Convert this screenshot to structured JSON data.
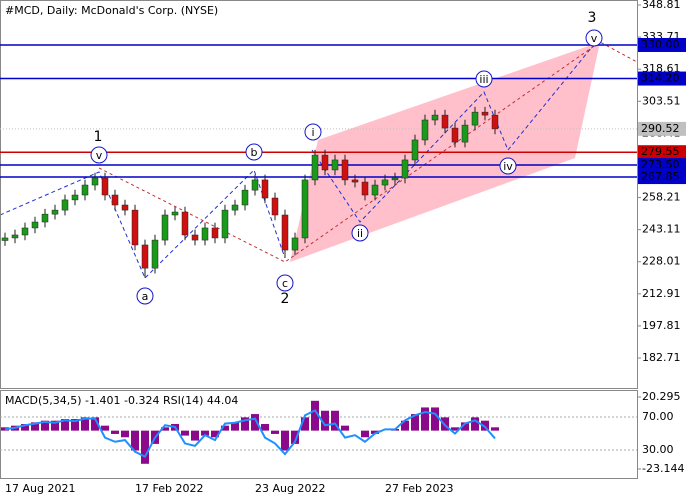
{
  "chart_data": [
    {
      "type": "candlestick",
      "title": "#MCD, Daily:  McDonald's Corp. (NYSE)",
      "categories": [
        "17 Aug 2021",
        null,
        null,
        null,
        null,
        null,
        null,
        null,
        null,
        null,
        null,
        null,
        null,
        "17 Feb 2022",
        null,
        null,
        null,
        null,
        null,
        null,
        null,
        null,
        null,
        null,
        null,
        "23 Aug 2022",
        null,
        null,
        null,
        null,
        null,
        null,
        null,
        null,
        null,
        null,
        null,
        null,
        "27 Feb 2023",
        null,
        null,
        null,
        null,
        null,
        null,
        null,
        null,
        null,
        null,
        null
      ],
      "open": [
        238.0,
        239.2,
        240.6,
        243.9,
        246.7,
        250.4,
        252.3,
        257.1,
        259.4,
        264.1,
        267.4,
        259.4,
        254.7,
        252.3,
        235.9,
        225.0,
        238.2,
        250.0,
        251.4,
        240.6,
        238.2,
        243.9,
        239.2,
        252.3,
        254.7,
        261.7,
        266.5,
        258.0,
        250.0,
        233.5,
        239.2,
        266.5,
        278.2,
        271.2,
        275.9,
        266.5,
        265.5,
        259.4,
        264.1,
        266.5,
        267.4,
        275.9,
        285.3,
        294.7,
        297.0,
        290.9,
        284.3,
        292.3,
        298.4,
        297.0
      ],
      "high": [
        241.7,
        243.1,
        246.4,
        249.2,
        252.9,
        254.8,
        259.6,
        261.9,
        266.6,
        269.9,
        269.9,
        261.9,
        257.2,
        254.8,
        238.4,
        240.7,
        252.5,
        253.9,
        253.9,
        243.1,
        246.4,
        246.4,
        254.8,
        257.2,
        264.2,
        269.0,
        269.0,
        260.5,
        252.5,
        241.7,
        269.0,
        280.7,
        280.7,
        278.4,
        278.4,
        269.0,
        268.0,
        266.6,
        269.0,
        269.9,
        278.4,
        287.8,
        297.2,
        299.5,
        299.5,
        293.4,
        294.8,
        300.9,
        300.9,
        299.5
      ],
      "low": [
        235.5,
        236.7,
        238.1,
        241.4,
        244.2,
        247.9,
        249.8,
        254.6,
        256.9,
        261.6,
        256.9,
        252.2,
        249.8,
        233.4,
        220.5,
        222.5,
        235.7,
        247.5,
        238.1,
        235.7,
        235.7,
        236.7,
        236.7,
        249.8,
        252.2,
        259.2,
        255.5,
        247.5,
        229.8,
        231.0,
        236.7,
        264.0,
        268.7,
        268.7,
        264.0,
        263.0,
        256.9,
        256.9,
        261.6,
        264.0,
        264.9,
        273.4,
        282.8,
        292.2,
        288.4,
        281.8,
        281.8,
        289.8,
        294.5,
        288.0
      ],
      "close": [
        239.2,
        240.6,
        243.9,
        246.7,
        250.4,
        252.3,
        257.1,
        259.4,
        264.1,
        267.4,
        259.4,
        254.7,
        252.3,
        235.9,
        225.0,
        238.2,
        250.0,
        251.4,
        240.6,
        238.2,
        243.9,
        239.2,
        252.3,
        254.7,
        261.7,
        266.5,
        258.0,
        250.0,
        233.5,
        239.2,
        266.5,
        278.2,
        271.2,
        275.9,
        266.5,
        265.5,
        259.4,
        264.1,
        266.5,
        267.4,
        275.9,
        285.3,
        294.7,
        297.0,
        290.9,
        284.3,
        292.3,
        298.4,
        297.0,
        290.52
      ],
      "up_color": "#1a9a1a",
      "down_color": "#d01010",
      "ylim": [
        168.6,
        351.16
      ],
      "yticks": [
        348.81,
        333.71,
        318.61,
        303.51,
        288.41,
        273.31,
        258.21,
        243.11,
        228.01,
        212.91,
        197.81,
        182.71
      ],
      "levels": [
        {
          "value": 330,
          "label": "330.00",
          "color": "#0000c8"
        },
        {
          "value": 314.2,
          "label": "314.20",
          "color": "#0000c8"
        },
        {
          "value": 279.55,
          "label": "279.55",
          "color": "#cc0000"
        },
        {
          "value": 273.5,
          "label": "273.50",
          "color": "#0000c8"
        },
        {
          "value": 267.85,
          "label": "267.85",
          "color": "#0000c8"
        }
      ],
      "last_price": {
        "value": 290.52,
        "label": "290.52",
        "color": "#c0c0c0"
      },
      "annotations": [
        {
          "text": "1",
          "color": "#b03020",
          "circled": false
        },
        {
          "text": "v",
          "color": "#1515c8",
          "circled": true
        },
        {
          "text": "a",
          "color": "#1515c8",
          "circled": true
        },
        {
          "text": "b",
          "color": "#1515c8",
          "circled": true
        },
        {
          "text": "c",
          "color": "#1515c8",
          "circled": true
        },
        {
          "text": "2",
          "color": "#b03020",
          "circled": false
        },
        {
          "text": "i",
          "color": "#1515c8",
          "circled": true
        },
        {
          "text": "ii",
          "color": "#1515c8",
          "circled": true
        },
        {
          "text": "iii",
          "color": "#1515c8",
          "circled": true
        },
        {
          "text": "iv",
          "color": "#1515c8",
          "circled": true
        },
        {
          "text": "v",
          "color": "#1515c8",
          "circled": true
        },
        {
          "text": "3",
          "color": "#b03020",
          "circled": false
        }
      ]
    },
    {
      "type": "bar",
      "title": "MACD(5,34,5) -1.401 -0.324 RSI(14) 44.04",
      "ylim": [
        -28.58,
        24.52
      ],
      "yticks": [
        20.295,
        -23.144
      ],
      "y2lim": [
        -3.9,
        102.7
      ],
      "y2ticks": [
        {
          "value": 70,
          "label": "70.00"
        },
        {
          "value": 30,
          "label": "30.00"
        }
      ],
      "series": [
        {
          "type": "bar",
          "color": "#8b0a8b",
          "values": [
            2,
            3,
            4,
            5,
            6,
            6,
            7,
            7,
            8,
            8,
            3,
            -2,
            -4,
            -12,
            -20,
            -8,
            2,
            4,
            -3,
            -6,
            -3,
            -4,
            3,
            5,
            8,
            10,
            4,
            -2,
            -12,
            -8,
            8,
            18,
            12,
            12,
            3,
            0,
            -4,
            -2,
            0,
            1,
            6,
            10,
            14,
            14,
            8,
            2,
            5,
            8,
            6,
            2
          ]
        },
        {
          "type": "line",
          "axis": "y2",
          "color": "#1e90ff",
          "values": [
            55,
            57,
            60,
            62,
            64,
            63,
            66,
            65,
            68,
            68,
            45,
            40,
            42,
            28,
            22,
            45,
            60,
            58,
            38,
            35,
            48,
            42,
            62,
            63,
            66,
            68,
            45,
            38,
            25,
            40,
            72,
            78,
            60,
            62,
            45,
            48,
            40,
            50,
            55,
            55,
            66,
            72,
            76,
            74,
            60,
            50,
            62,
            66,
            58,
            44.04
          ]
        }
      ]
    }
  ]
}
